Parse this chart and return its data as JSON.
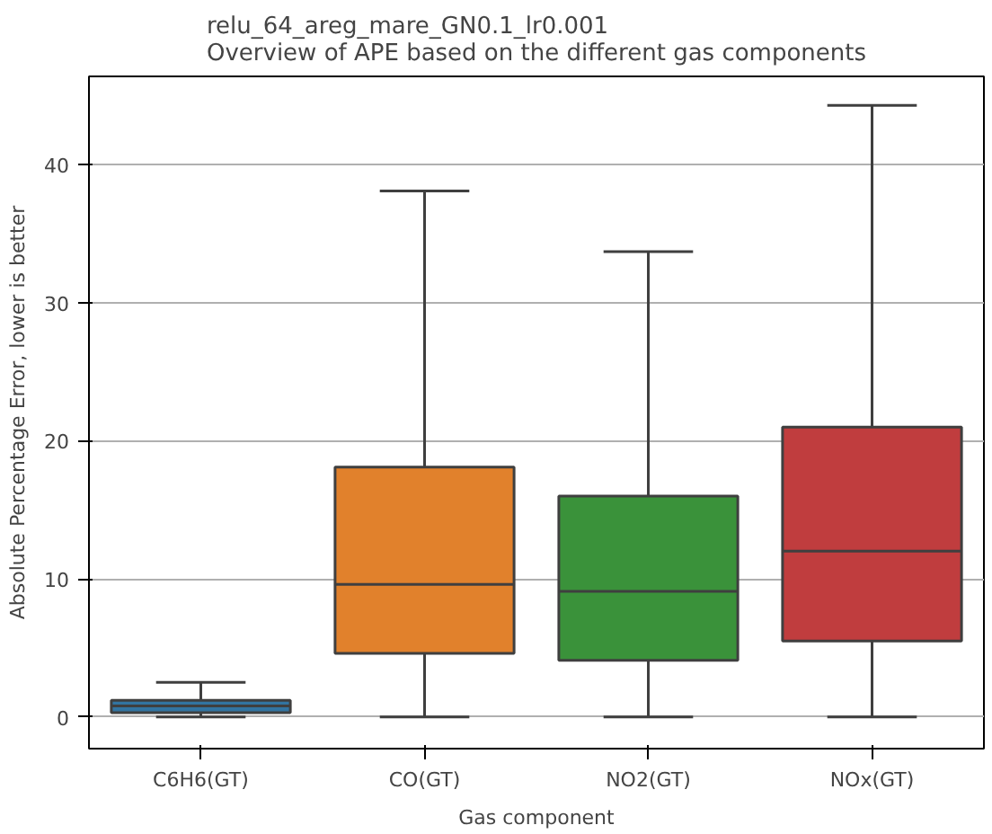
{
  "chart_data": {
    "type": "box",
    "title": "relu_64_areg_mare_GN0.1_lr0.001\nOverview of APE based on the different gas components",
    "xlabel": "Gas component",
    "ylabel": "Absolute Percentage Error, lower is better",
    "categories": [
      "C6H6(GT)",
      "CO(GT)",
      "NO2(GT)",
      "NOx(GT)"
    ],
    "colors": [
      "#3274a1",
      "#e1812c",
      "#3a923a",
      "#c03d3e"
    ],
    "boxes": [
      {
        "low": 0,
        "q1": 0.3,
        "median": 0.8,
        "q3": 1.2,
        "high": 2.5
      },
      {
        "low": 0,
        "q1": 4.6,
        "median": 9.6,
        "q3": 18.1,
        "high": 38.1
      },
      {
        "low": 0,
        "q1": 4.1,
        "median": 9.1,
        "q3": 16.0,
        "high": 33.7
      },
      {
        "low": 0,
        "q1": 5.5,
        "median": 12.0,
        "q3": 21.0,
        "high": 44.3
      }
    ],
    "ylim": [
      -2.3,
      46.4
    ],
    "yticks": [
      0,
      10,
      20,
      30,
      40
    ],
    "grid": "y"
  }
}
